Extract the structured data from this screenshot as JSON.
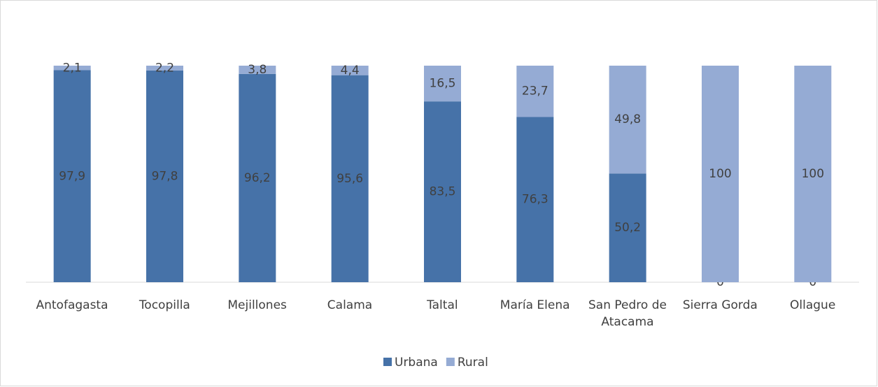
{
  "chart_data": {
    "type": "stacked_bar",
    "categories": [
      "Antofagasta",
      "Tocopilla",
      "Mejillones",
      "Calama",
      "Taltal",
      "María Elena",
      "San Pedro de Atacama",
      "Sierra Gorda",
      "Ollague"
    ],
    "series": [
      {
        "name": "Urbana",
        "color": "#4672a8",
        "values": [
          97.9,
          97.8,
          96.2,
          95.6,
          83.5,
          76.3,
          50.2,
          0,
          0
        ],
        "value_labels": [
          "97,9",
          "97,8",
          "96,2",
          "95,6",
          "83,5",
          "76,3",
          "50,2",
          "0",
          "0"
        ]
      },
      {
        "name": "Rural",
        "color": "#95abd4",
        "values": [
          2.1,
          2.2,
          3.8,
          4.4,
          16.5,
          23.7,
          49.8,
          100,
          100
        ],
        "value_labels": [
          "2,1",
          "2,2",
          "3,8",
          "4,4",
          "16,5",
          "23,7",
          "49,8",
          "100",
          "100"
        ]
      }
    ],
    "ylim": [
      0,
      100
    ],
    "legend": "bottom"
  }
}
